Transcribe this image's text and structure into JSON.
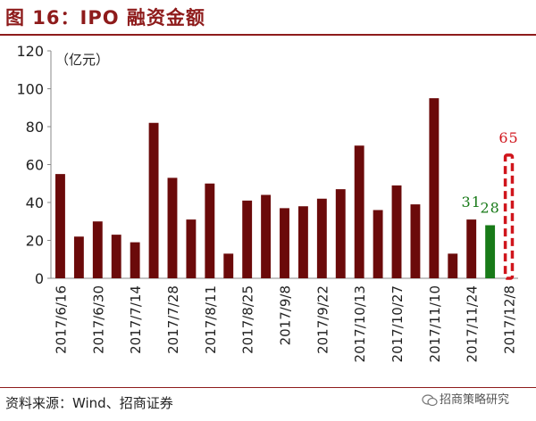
{
  "header": {
    "title": "图 16：IPO 融资金额"
  },
  "footer": {
    "source": "资料来源：Wind、招商证券",
    "watermark": "招商策略研究"
  },
  "colors": {
    "primary_bar": "#6b0a0a",
    "highlight_bar": "#187a18",
    "dashed_bar": "#d0151c",
    "title": "#8e1b1b"
  },
  "chart_data": {
    "type": "bar",
    "title": "",
    "unit_label": "（亿元）",
    "ylim": [
      0,
      120
    ],
    "yticks": [
      0,
      20,
      40,
      60,
      80,
      100,
      120
    ],
    "grid": false,
    "categories": [
      "2017/6/16",
      "",
      "2017/6/30",
      "",
      "2017/7/14",
      "",
      "2017/7/28",
      "",
      "2017/8/11",
      "",
      "2017/8/25",
      "",
      "2017/9/8",
      "",
      "2017/9/22",
      "",
      "2017/10/13",
      "",
      "2017/10/27",
      "",
      "2017/11/10",
      "",
      "2017/11/24",
      "",
      "2017/12/8"
    ],
    "values": [
      55,
      22,
      30,
      23,
      19,
      82,
      53,
      31,
      50,
      13,
      41,
      44,
      37,
      38,
      42,
      47,
      70,
      36,
      49,
      39,
      95,
      13,
      31,
      28,
      65
    ],
    "bar_styles": [
      "solid",
      "solid",
      "solid",
      "solid",
      "solid",
      "solid",
      "solid",
      "solid",
      "solid",
      "solid",
      "solid",
      "solid",
      "solid",
      "solid",
      "solid",
      "solid",
      "solid",
      "solid",
      "solid",
      "solid",
      "solid",
      "solid",
      "solid",
      "highlight",
      "dashed"
    ],
    "annotations": [
      {
        "index": 22,
        "text": "31",
        "color": "#187a18"
      },
      {
        "index": 23,
        "text": "28",
        "color": "#187a18"
      },
      {
        "index": 24,
        "text": "65",
        "color": "#d0151c"
      }
    ]
  }
}
